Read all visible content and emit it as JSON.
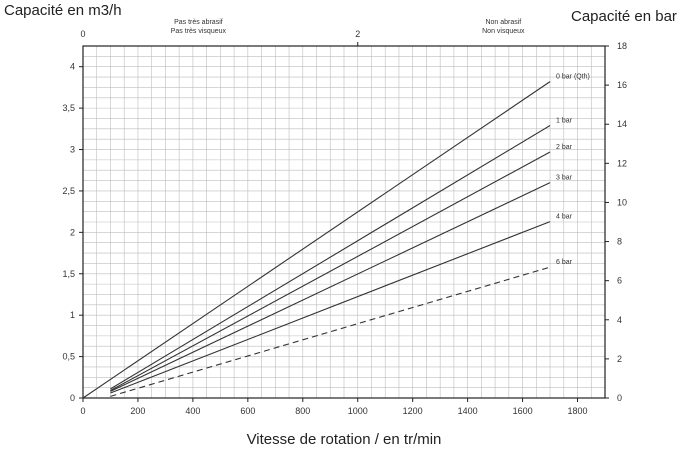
{
  "chart_data": {
    "type": "line",
    "left_axis_title": "Capacité en m3/h",
    "right_axis_title": "Capacité en bar",
    "xlabel": "Vitesse de rotation / en tr/min",
    "xlim": [
      0,
      1900
    ],
    "ylim": [
      0,
      4.25
    ],
    "ylim_right": [
      0,
      18
    ],
    "x_ticks": [
      "0",
      "200",
      "400",
      "600",
      "800",
      "1000",
      "1200",
      "1400",
      "1600",
      "1800"
    ],
    "y_ticks": [
      "0",
      "0,5",
      "1",
      "1,5",
      "2",
      "2,5",
      "3",
      "3,5",
      "4"
    ],
    "y_right_ticks": [
      "0",
      "2",
      "4",
      "6",
      "8",
      "10",
      "12",
      "14",
      "16",
      "18"
    ],
    "top_axis": {
      "ticks": [
        "0",
        "2"
      ],
      "zone_left": [
        "Pas très abrasif",
        "Pas très visqueux"
      ],
      "zone_right": [
        "Non abrasif",
        "Non visqueux"
      ]
    },
    "grid": true,
    "series": [
      {
        "name": "0 bar (Qth)",
        "style": "solid",
        "x": [
          0,
          1700
        ],
        "y": [
          0,
          3.82
        ]
      },
      {
        "name": "1 bar",
        "style": "solid",
        "x": [
          100,
          1700
        ],
        "y": [
          0.11,
          3.29
        ]
      },
      {
        "name": "2 bar",
        "style": "solid",
        "x": [
          100,
          1700
        ],
        "y": [
          0.09,
          2.97
        ]
      },
      {
        "name": "3 bar",
        "style": "solid",
        "x": [
          100,
          1700
        ],
        "y": [
          0.08,
          2.6
        ]
      },
      {
        "name": "4 bar",
        "style": "solid",
        "x": [
          100,
          1700
        ],
        "y": [
          0.06,
          2.13
        ]
      },
      {
        "name": "6 bar",
        "style": "dashed",
        "x": [
          100,
          1700
        ],
        "y": [
          0.02,
          1.58
        ]
      }
    ],
    "colors": {
      "line": "#333333",
      "grid": "#bdbdbd",
      "frame": "#222222"
    }
  }
}
